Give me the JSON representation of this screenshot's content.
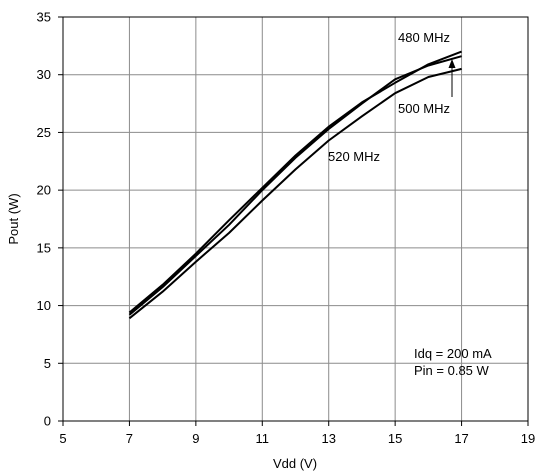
{
  "chart_data": {
    "type": "line",
    "title": "",
    "xlabel": "Vdd (V)",
    "ylabel": "Pout (W)",
    "xlim": [
      5,
      19
    ],
    "ylim": [
      0,
      35
    ],
    "x_ticks": [
      "5",
      "7",
      "9",
      "11",
      "13",
      "15",
      "17",
      "19"
    ],
    "y_ticks": [
      "0",
      "5",
      "10",
      "15",
      "20",
      "25",
      "30",
      "35"
    ],
    "grid": true,
    "legend": "none",
    "series": [
      {
        "name": "480 MHz",
        "color": "#000000",
        "x": [
          7,
          8,
          9,
          10,
          11,
          12,
          13,
          14,
          15,
          16,
          17
        ],
        "y": [
          9.4,
          11.8,
          14.5,
          17.4,
          20.2,
          23.0,
          25.5,
          27.6,
          29.3,
          30.9,
          32.0
        ]
      },
      {
        "name": "500 MHz",
        "color": "#000000",
        "x": [
          7,
          8,
          9,
          10,
          11,
          12,
          13,
          14,
          15,
          16,
          17
        ],
        "y": [
          9.2,
          11.6,
          14.3,
          17.0,
          20.0,
          22.8,
          25.3,
          27.5,
          29.6,
          30.8,
          31.6
        ]
      },
      {
        "name": "520 MHz",
        "color": "#000000",
        "x": [
          7,
          8,
          9,
          10,
          11,
          12,
          13,
          14,
          15,
          16,
          17
        ],
        "y": [
          8.9,
          11.2,
          13.8,
          16.3,
          19.1,
          21.8,
          24.3,
          26.4,
          28.4,
          29.8,
          30.5
        ]
      }
    ],
    "annotations": {
      "label_480": "480 MHz",
      "label_500": "500 MHz",
      "label_520": "520 MHz",
      "idq": "Idq = 200 mA",
      "pin": "Pin = 0.85 W"
    }
  }
}
